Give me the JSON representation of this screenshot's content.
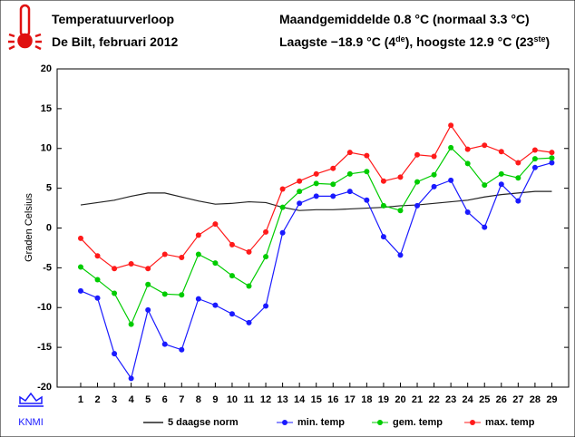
{
  "header": {
    "title": "Temperatuurverloop",
    "subtitle": "De Bilt, februari 2012",
    "summary": "Maandgemiddelde 0.8 °C (normaal 3.3 °C)",
    "extremes": {
      "part1": "Laagste −18.9 °C (4",
      "sup1": "de",
      "part2": "), hoogste 12.9 °C (23",
      "sup2": "ste",
      "part3": ")"
    },
    "logo": "KNMI"
  },
  "chart_data": {
    "type": "line",
    "y_label": "Graden Celsius",
    "x": [
      1,
      2,
      3,
      4,
      5,
      6,
      7,
      8,
      9,
      10,
      11,
      12,
      13,
      14,
      15,
      16,
      17,
      18,
      19,
      20,
      21,
      22,
      23,
      24,
      25,
      26,
      27,
      28,
      29
    ],
    "xlim": [
      -0.4,
      30
    ],
    "ylim": [
      -20,
      20
    ],
    "yticks": [
      -20,
      -15,
      -10,
      -5,
      0,
      5,
      10,
      15,
      20
    ],
    "series": [
      {
        "name": "5 daagse norm",
        "color": "#222222",
        "markers": false,
        "values": [
          2.9,
          3.2,
          3.5,
          4.0,
          4.4,
          4.4,
          3.9,
          3.4,
          3.0,
          3.1,
          3.3,
          3.2,
          2.6,
          2.2,
          2.3,
          2.3,
          2.4,
          2.5,
          2.6,
          2.8,
          2.9,
          3.1,
          3.3,
          3.5,
          3.9,
          4.2,
          4.4,
          4.6,
          4.6
        ]
      },
      {
        "name": "min. temp",
        "color": "#1a1aff",
        "markers": true,
        "values": [
          -7.9,
          -8.8,
          -15.8,
          -18.9,
          -10.3,
          -14.6,
          -15.3,
          -8.9,
          -9.7,
          -10.8,
          -11.9,
          -9.8,
          -0.6,
          3.1,
          4.0,
          4.0,
          4.6,
          3.5,
          -1.1,
          -3.4,
          2.8,
          5.2,
          6.0,
          2.0,
          0.1,
          5.5,
          3.4,
          7.6,
          8.2
        ]
      },
      {
        "name": "gem. temp",
        "color": "#00cc00",
        "markers": true,
        "values": [
          -4.9,
          -6.5,
          -8.2,
          -12.1,
          -7.1,
          -8.3,
          -8.4,
          -3.3,
          -4.4,
          -6.0,
          -7.3,
          -3.6,
          2.6,
          4.6,
          5.6,
          5.5,
          6.8,
          7.1,
          2.8,
          2.2,
          5.8,
          6.7,
          10.1,
          8.1,
          5.4,
          6.8,
          6.3,
          8.7,
          8.8
        ]
      },
      {
        "name": "max. temp",
        "color": "#ff1a1a",
        "markers": true,
        "values": [
          -1.3,
          -3.5,
          -5.1,
          -4.5,
          -5.1,
          -3.3,
          -3.7,
          -0.9,
          0.5,
          -2.1,
          -3.0,
          -0.5,
          4.9,
          5.9,
          6.8,
          7.5,
          9.5,
          9.1,
          5.9,
          6.4,
          9.2,
          9.0,
          12.9,
          9.9,
          10.4,
          9.6,
          8.2,
          9.8,
          9.5
        ]
      }
    ]
  }
}
